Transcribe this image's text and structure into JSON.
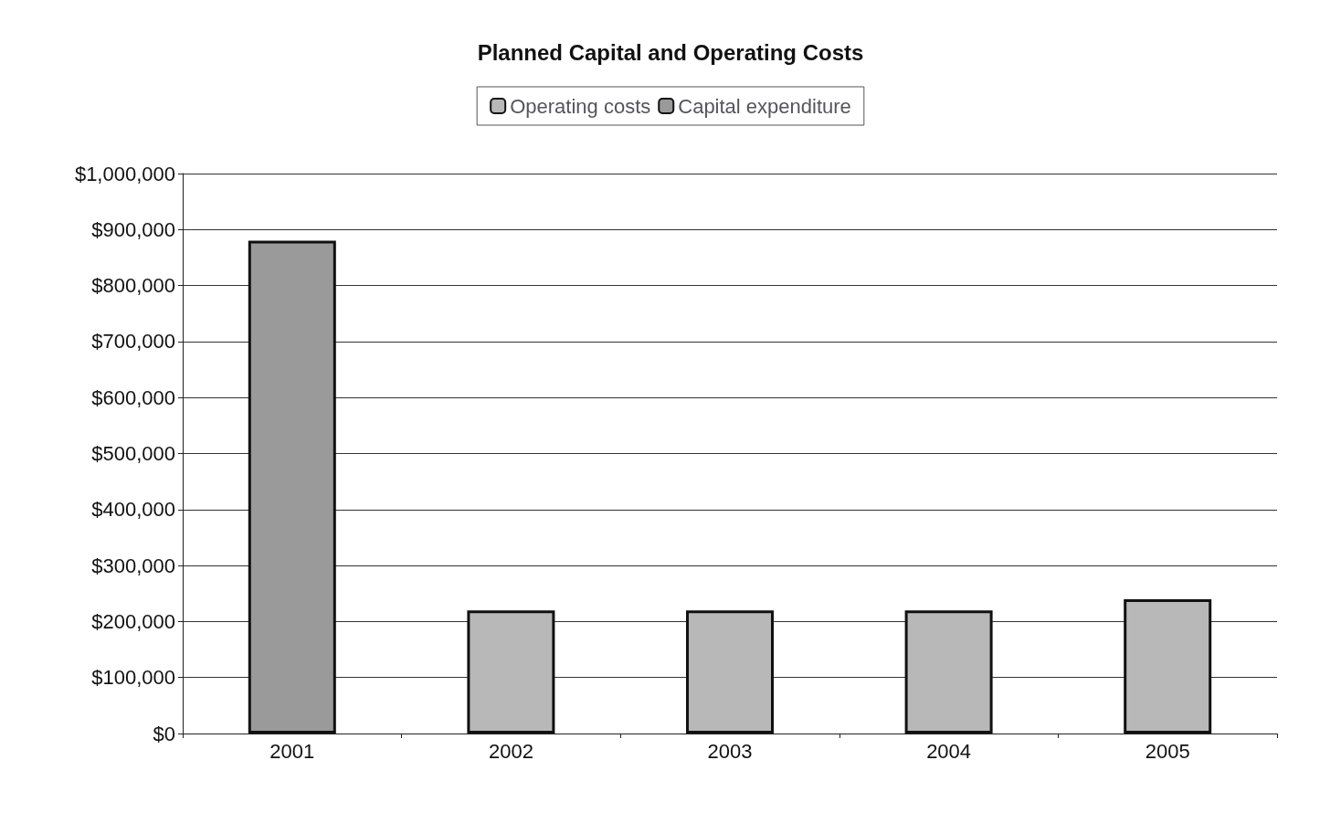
{
  "chart_data": {
    "type": "bar",
    "title": "Planned Capital and Operating Costs",
    "categories": [
      "2001",
      "2002",
      "2003",
      "2004",
      "2005"
    ],
    "series": [
      {
        "name": "Operating costs",
        "color": "#b8b8b8",
        "values": [
          null,
          220000,
          220000,
          220000,
          240000
        ]
      },
      {
        "name": "Capital expenditure",
        "color": "#9a9a9a",
        "values": [
          880000,
          null,
          null,
          null,
          null
        ]
      }
    ],
    "stacked": true,
    "ylim": [
      0,
      1000000
    ],
    "yticks": [
      {
        "value": 0,
        "label": "$0"
      },
      {
        "value": 100000,
        "label": "$100,000"
      },
      {
        "value": 200000,
        "label": "$200,000"
      },
      {
        "value": 300000,
        "label": "$300,000"
      },
      {
        "value": 400000,
        "label": "$400,000"
      },
      {
        "value": 500000,
        "label": "$500,000"
      },
      {
        "value": 600000,
        "label": "$600,000"
      },
      {
        "value": 700000,
        "label": "$700,000"
      },
      {
        "value": 800000,
        "label": "$800,000"
      },
      {
        "value": 900000,
        "label": "$900,000"
      },
      {
        "value": 1000000,
        "label": "$1,000,000"
      }
    ],
    "grid": "y",
    "legend": "top"
  }
}
